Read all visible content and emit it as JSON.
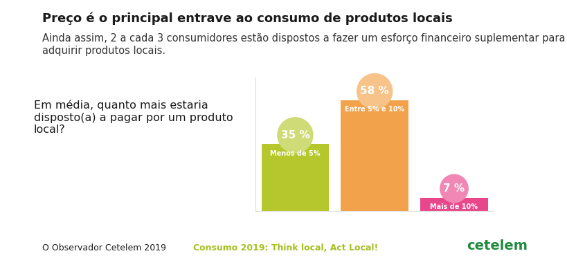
{
  "chart_data": {
    "type": "bar",
    "title": "Preço é o principal entrave ao consumo de produtos locais",
    "subtitle": "Ainda assim, 2 a cada 3 consumidores estão dispostos a fazer um esforço financeiro suplementar para adquirir produtos locais.",
    "question": "Em média, quanto mais estaria disposto(a) a pagar por um produto local?",
    "categories": [
      "Menos de 5%",
      "Entre 5% e 10%",
      "Mais de 10%"
    ],
    "values": [
      35,
      58,
      7
    ],
    "value_labels": [
      "35 %",
      "58 %",
      "7 %"
    ],
    "colors": [
      "#b5c72c",
      "#f2a24a",
      "#e8478b"
    ],
    "data_labels": true,
    "tick_labels": false,
    "ylim": [
      0,
      70
    ],
    "grid": false,
    "footer": {
      "source": "O Observador Cetelem 2019",
      "campaign": "Consumo 2019: Think local, Act Local!",
      "brand": "cetelem"
    }
  }
}
